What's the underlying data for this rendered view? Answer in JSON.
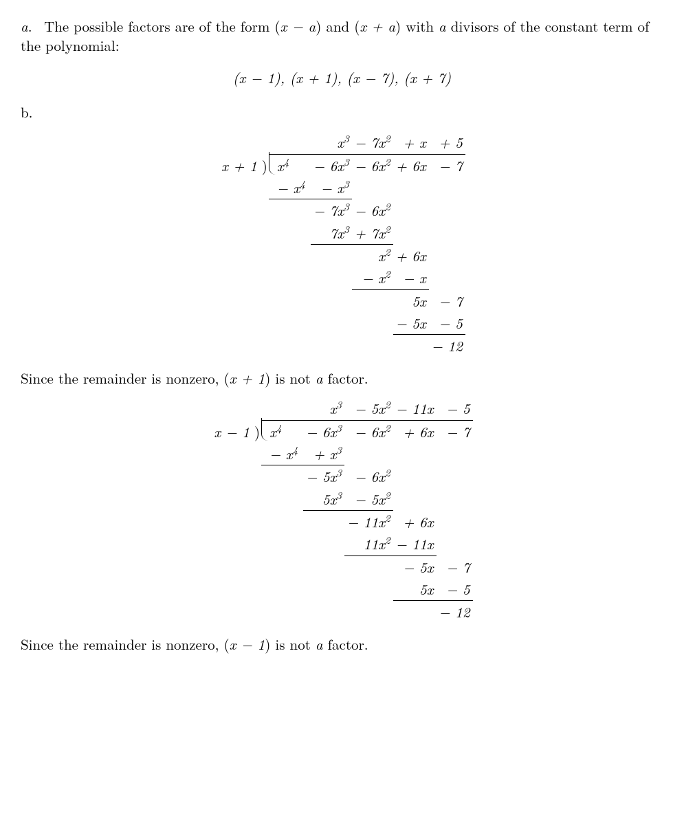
{
  "partA": {
    "label": "a.",
    "leadText1": "The possible factors are of the form (",
    "xm": "x − a",
    "leadText2": ") and (",
    "xp": "x + a",
    "leadText3": ") with ",
    "aVar": "a",
    "leadText4": " divisors of the constant term of the polynomial:",
    "factors": "(x − 1), (x + 1), (x − 7), (x + 7)"
  },
  "partB": {
    "label": "b."
  },
  "div1": {
    "divisor": "x + 1",
    "quotient": {
      "c3": "x³",
      "c2": "− 7x²",
      "c1": "+ x",
      "c0": "+ 5"
    },
    "dividend": {
      "c4": "x⁴",
      "c3": "− 6x³",
      "c2": "− 6x²",
      "c1": "+ 6x",
      "c0": "− 7"
    },
    "s1": {
      "c4": "− x⁴",
      "c3": "− x³"
    },
    "r1": {
      "c3": "− 7x³",
      "c2": "− 6x²"
    },
    "s2": {
      "c3": "7x³",
      "c2": "+ 7x²"
    },
    "r2": {
      "c2": "x²",
      "c1": "+ 6x"
    },
    "s3": {
      "c2": "− x²",
      "c1": "− x"
    },
    "r3": {
      "c1": "5x",
      "c0": "− 7"
    },
    "s4": {
      "c1": "− 5x",
      "c0": "− 5"
    },
    "remainder": "− 12",
    "conclusionA": "Since the remainder is nonzero, (",
    "conclusionFactor": "x + 1",
    "conclusionB": ") is not a factor."
  },
  "div2": {
    "divisor": "x − 1",
    "quotient": {
      "c3": "x³",
      "c2": "− 5x²",
      "c1": "− 11x",
      "c0": "− 5"
    },
    "dividend": {
      "c4": "x⁴",
      "c3": "− 6x³",
      "c2": "− 6x²",
      "c1": "+ 6x",
      "c0": "− 7"
    },
    "s1": {
      "c4": "− x⁴",
      "c3": "+ x³"
    },
    "r1": {
      "c3": "− 5x³",
      "c2": "− 6x²"
    },
    "s2": {
      "c3": "5x³",
      "c2": "− 5x²"
    },
    "r2": {
      "c2": "− 11x²",
      "c1": "+ 6x"
    },
    "s3": {
      "c2": "11x²",
      "c1": "− 11x"
    },
    "r3": {
      "c1": "− 5x",
      "c0": "− 7"
    },
    "s4": {
      "c1": "5x",
      "c0": "− 5"
    },
    "remainder": "− 12",
    "conclusionA": "Since the remainder is nonzero, (",
    "conclusionFactor": "x − 1",
    "conclusionB": ") is not a factor."
  }
}
